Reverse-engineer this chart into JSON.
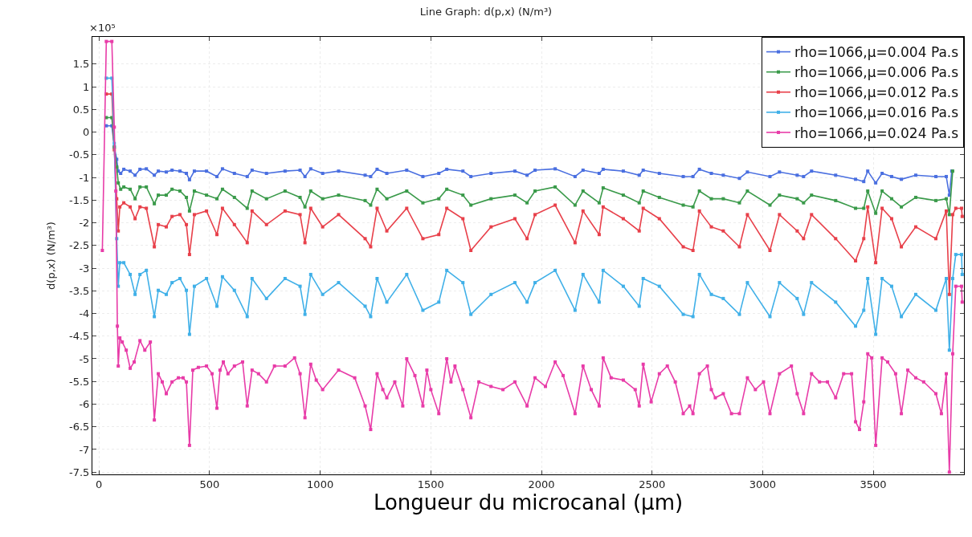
{
  "chart_data": {
    "type": "line",
    "title": "Line Graph: d(p,x) (N/m³)",
    "xlabel": "Longueur du microcanal (µm)",
    "ylabel": "d(p,x) (N/m³)",
    "xlim": [
      -30,
      3910
    ],
    "xticks": [
      0,
      500,
      1000,
      1500,
      2000,
      2500,
      3000,
      3500
    ],
    "ylim": [
      -7.55,
      2.1
    ],
    "annotations": [
      "×10⁵"
    ],
    "yticks": [
      1.5,
      1,
      0.5,
      0,
      -0.5,
      -1,
      -1.5,
      -2,
      -2.5,
      -3,
      -3.5,
      -4,
      -4.5,
      -5,
      -5.5,
      -6,
      -6.5,
      -7,
      -7.5
    ],
    "grid": true,
    "legend": "top right",
    "marker": "square",
    "line_style": "solid",
    "series": [
      {
        "name": "rho=1066,µ=0.004 Pa.s",
        "color": "#4a6fe0",
        "x": [
          33,
          58,
          69,
          80,
          87,
          98,
          112,
          141,
          163,
          185,
          214,
          250,
          268,
          304,
          330,
          366,
          395,
          409,
          431,
          486,
          533,
          558,
          612,
          670,
          692,
          757,
          841,
          909,
          931,
          957,
          1011,
          1083,
          1203,
          1228,
          1257,
          1301,
          1391,
          1464,
          1536,
          1572,
          1645,
          1681,
          1772,
          1880,
          1935,
          1971,
          2062,
          2152,
          2188,
          2261,
          2279,
          2370,
          2442,
          2460,
          2533,
          2641,
          2685,
          2714,
          2768,
          2822,
          2895,
          2931,
          3033,
          3076,
          3156,
          3185,
          3221,
          3330,
          3420,
          3457,
          3475,
          3511,
          3540,
          3583,
          3627,
          3692,
          3783,
          3830,
          3844,
          3855
        ],
        "values": [
          0.14,
          0.14,
          -0.33,
          -0.6,
          -0.86,
          -0.91,
          -0.82,
          -0.86,
          -0.95,
          -0.82,
          -0.81,
          -0.95,
          -0.86,
          -0.88,
          -0.84,
          -0.86,
          -0.91,
          -1.05,
          -0.86,
          -0.86,
          -0.98,
          -0.81,
          -0.91,
          -0.98,
          -0.84,
          -0.91,
          -0.86,
          -0.84,
          -0.98,
          -0.81,
          -0.91,
          -0.86,
          -0.95,
          -0.98,
          -0.82,
          -0.91,
          -0.84,
          -0.98,
          -0.91,
          -0.82,
          -0.86,
          -0.98,
          -0.91,
          -0.86,
          -0.95,
          -0.84,
          -0.81,
          -0.98,
          -0.84,
          -0.91,
          -0.82,
          -0.86,
          -0.95,
          -0.84,
          -0.91,
          -0.98,
          -0.98,
          -0.82,
          -0.91,
          -0.95,
          -1.02,
          -0.88,
          -0.98,
          -0.88,
          -0.95,
          -0.98,
          -0.86,
          -0.95,
          -1.04,
          -1.09,
          -0.86,
          -1.12,
          -0.91,
          -0.98,
          -1.04,
          -0.95,
          -0.98,
          -0.98,
          -1.39,
          -0.86
        ]
      },
      {
        "name": "rho=1066,µ=0.006 Pa.s",
        "color": "#3a9a4a",
        "x": [
          33,
          58,
          69,
          80,
          87,
          98,
          112,
          141,
          163,
          185,
          214,
          250,
          268,
          304,
          330,
          366,
          395,
          409,
          431,
          486,
          533,
          558,
          612,
          670,
          692,
          757,
          841,
          909,
          931,
          957,
          1011,
          1083,
          1203,
          1228,
          1257,
          1301,
          1391,
          1464,
          1536,
          1572,
          1645,
          1681,
          1772,
          1880,
          1935,
          1971,
          2062,
          2152,
          2188,
          2261,
          2279,
          2370,
          2442,
          2460,
          2533,
          2641,
          2685,
          2714,
          2768,
          2822,
          2895,
          2931,
          3033,
          3076,
          3156,
          3185,
          3221,
          3330,
          3420,
          3457,
          3475,
          3511,
          3540,
          3583,
          3627,
          3692,
          3783,
          3830,
          3844,
          3859
        ],
        "values": [
          0.32,
          0.32,
          -0.33,
          -0.77,
          -1.12,
          -1.26,
          -1.21,
          -1.26,
          -1.47,
          -1.21,
          -1.21,
          -1.58,
          -1.39,
          -1.39,
          -1.26,
          -1.3,
          -1.44,
          -1.74,
          -1.3,
          -1.39,
          -1.47,
          -1.26,
          -1.44,
          -1.68,
          -1.3,
          -1.47,
          -1.3,
          -1.44,
          -1.65,
          -1.3,
          -1.47,
          -1.39,
          -1.51,
          -1.61,
          -1.26,
          -1.47,
          -1.3,
          -1.56,
          -1.47,
          -1.26,
          -1.39,
          -1.61,
          -1.47,
          -1.39,
          -1.56,
          -1.3,
          -1.21,
          -1.61,
          -1.3,
          -1.56,
          -1.23,
          -1.39,
          -1.56,
          -1.3,
          -1.44,
          -1.61,
          -1.65,
          -1.3,
          -1.47,
          -1.47,
          -1.56,
          -1.3,
          -1.61,
          -1.39,
          -1.47,
          -1.56,
          -1.39,
          -1.51,
          -1.68,
          -1.68,
          -1.3,
          -1.79,
          -1.3,
          -1.47,
          -1.65,
          -1.44,
          -1.51,
          -1.47,
          -1.82,
          -0.86
        ]
      },
      {
        "name": "rho=1066,µ=0.012 Pa.s",
        "color": "#e8404a",
        "x": [
          33,
          58,
          69,
          80,
          87,
          94,
          112,
          141,
          163,
          185,
          214,
          250,
          268,
          304,
          330,
          366,
          395,
          409,
          431,
          486,
          533,
          558,
          612,
          670,
          692,
          757,
          841,
          909,
          931,
          957,
          1011,
          1083,
          1203,
          1228,
          1257,
          1301,
          1391,
          1464,
          1536,
          1572,
          1645,
          1681,
          1772,
          1880,
          1935,
          1971,
          2062,
          2152,
          2188,
          2261,
          2279,
          2370,
          2442,
          2460,
          2533,
          2641,
          2685,
          2714,
          2768,
          2822,
          2895,
          2931,
          3033,
          3076,
          3156,
          3185,
          3221,
          3330,
          3420,
          3457,
          3475,
          3511,
          3540,
          3583,
          3627,
          3692,
          3783,
          3830,
          3844,
          3859,
          3873,
          3899,
          3902
        ],
        "values": [
          0.84,
          0.84,
          -0.39,
          -1.47,
          -2.18,
          -1.65,
          -1.56,
          -1.65,
          -1.91,
          -1.65,
          -1.68,
          -2.53,
          -2.04,
          -2.09,
          -1.86,
          -1.82,
          -2.04,
          -2.7,
          -1.82,
          -1.74,
          -2.26,
          -1.68,
          -2.04,
          -2.44,
          -1.74,
          -2.04,
          -1.74,
          -1.82,
          -2.44,
          -1.68,
          -2.09,
          -1.82,
          -2.35,
          -2.53,
          -1.68,
          -2.18,
          -1.68,
          -2.35,
          -2.26,
          -1.68,
          -1.91,
          -2.61,
          -2.09,
          -1.91,
          -2.35,
          -1.82,
          -1.61,
          -2.44,
          -1.74,
          -2.26,
          -1.65,
          -1.91,
          -2.18,
          -1.68,
          -1.91,
          -2.53,
          -2.61,
          -1.74,
          -2.09,
          -2.18,
          -2.53,
          -1.82,
          -2.61,
          -1.82,
          -2.18,
          -2.35,
          -1.82,
          -2.35,
          -2.84,
          -2.35,
          -1.65,
          -2.88,
          -1.68,
          -1.91,
          -2.53,
          -2.09,
          -2.35,
          -1.74,
          -3.58,
          -1.82,
          -1.68,
          -1.68,
          -1.86
        ]
      },
      {
        "name": "rho=1066,µ=0.016 Pa.s",
        "color": "#40b0e8",
        "x": [
          33,
          58,
          69,
          80,
          87,
          94,
          112,
          141,
          163,
          185,
          214,
          250,
          268,
          304,
          330,
          366,
          395,
          409,
          431,
          486,
          533,
          558,
          612,
          670,
          692,
          757,
          841,
          909,
          931,
          957,
          1011,
          1083,
          1203,
          1228,
          1257,
          1301,
          1391,
          1464,
          1536,
          1572,
          1645,
          1681,
          1772,
          1880,
          1935,
          1971,
          2062,
          2152,
          2188,
          2261,
          2279,
          2370,
          2442,
          2460,
          2533,
          2641,
          2685,
          2714,
          2768,
          2822,
          2895,
          2931,
          3033,
          3076,
          3156,
          3185,
          3221,
          3330,
          3420,
          3457,
          3475,
          3511,
          3540,
          3583,
          3627,
          3692,
          3783,
          3830,
          3844,
          3859,
          3873,
          3899,
          3902
        ],
        "values": [
          1.19,
          1.19,
          -0.25,
          -2.35,
          -3.4,
          -2.88,
          -2.88,
          -3.14,
          -3.58,
          -3.14,
          -3.05,
          -4.07,
          -3.49,
          -3.58,
          -3.32,
          -3.23,
          -3.49,
          -4.46,
          -3.4,
          -3.23,
          -3.84,
          -3.19,
          -3.49,
          -4.07,
          -3.23,
          -3.67,
          -3.23,
          -3.4,
          -4.02,
          -3.14,
          -3.58,
          -3.32,
          -3.84,
          -4.07,
          -3.23,
          -3.75,
          -3.14,
          -3.93,
          -3.75,
          -3.05,
          -3.32,
          -4.02,
          -3.58,
          -3.32,
          -3.75,
          -3.32,
          -3.05,
          -3.93,
          -3.14,
          -3.75,
          -3.05,
          -3.4,
          -3.84,
          -3.23,
          -3.4,
          -4.02,
          -4.07,
          -3.14,
          -3.58,
          -3.67,
          -4.02,
          -3.32,
          -4.07,
          -3.32,
          -3.67,
          -4.02,
          -3.32,
          -3.75,
          -4.28,
          -3.93,
          -3.23,
          -4.46,
          -3.23,
          -3.4,
          -4.07,
          -3.58,
          -3.93,
          -3.23,
          -4.81,
          -3.23,
          -2.7,
          -2.7,
          -3.14
        ]
      },
      {
        "name": "rho=1066,µ=0.024 Pa.s",
        "color": "#e83ca8",
        "x": [
          15,
          33,
          58,
          69,
          76,
          83,
          87,
          94,
          105,
          123,
          141,
          159,
          185,
          207,
          232,
          250,
          268,
          286,
          304,
          330,
          359,
          380,
          395,
          409,
          424,
          449,
          486,
          511,
          533,
          547,
          562,
          583,
          612,
          649,
          670,
          692,
          721,
          757,
          793,
          841,
          884,
          909,
          931,
          957,
          982,
          1011,
          1083,
          1156,
          1203,
          1228,
          1257,
          1283,
          1301,
          1337,
          1373,
          1391,
          1428,
          1464,
          1482,
          1500,
          1536,
          1572,
          1591,
          1609,
          1645,
          1681,
          1717,
          1772,
          1826,
          1880,
          1935,
          1971,
          2018,
          2062,
          2098,
          2152,
          2188,
          2225,
          2261,
          2279,
          2315,
          2370,
          2424,
          2442,
          2460,
          2496,
          2533,
          2569,
          2605,
          2641,
          2670,
          2685,
          2714,
          2750,
          2768,
          2786,
          2822,
          2859,
          2895,
          2931,
          2967,
          3004,
          3033,
          3076,
          3130,
          3156,
          3185,
          3221,
          3257,
          3293,
          3330,
          3366,
          3402,
          3420,
          3438,
          3457,
          3475,
          3493,
          3511,
          3540,
          3565,
          3601,
          3627,
          3656,
          3692,
          3728,
          3783,
          3808,
          3830,
          3844,
          3859,
          3873,
          3899,
          3902
        ],
        "values": [
          -2.61,
          2.0,
          2.0,
          0.11,
          -1.3,
          -4.28,
          -5.16,
          -4.54,
          -4.63,
          -4.81,
          -5.21,
          -5.07,
          -4.6,
          -4.81,
          -4.63,
          -6.35,
          -5.33,
          -5.51,
          -5.77,
          -5.51,
          -5.42,
          -5.42,
          -5.51,
          -6.91,
          -5.25,
          -5.19,
          -5.16,
          -5.33,
          -6.09,
          -5.25,
          -5.07,
          -5.33,
          -5.16,
          -5.07,
          -6.04,
          -5.25,
          -5.33,
          -5.51,
          -5.16,
          -5.16,
          -4.98,
          -5.33,
          -6.3,
          -5.12,
          -5.47,
          -5.68,
          -5.25,
          -5.42,
          -6.04,
          -6.56,
          -5.33,
          -5.68,
          -5.86,
          -5.51,
          -6.04,
          -5.0,
          -5.37,
          -6.04,
          -5.25,
          -5.68,
          -6.21,
          -5.0,
          -5.51,
          -5.16,
          -5.68,
          -6.3,
          -5.51,
          -5.61,
          -5.68,
          -5.51,
          -6.04,
          -5.42,
          -5.61,
          -5.07,
          -5.37,
          -6.21,
          -5.16,
          -5.68,
          -6.04,
          -4.98,
          -5.42,
          -5.47,
          -5.68,
          -6.04,
          -5.12,
          -5.95,
          -5.33,
          -5.16,
          -5.51,
          -6.21,
          -6.04,
          -6.21,
          -5.33,
          -5.16,
          -5.68,
          -5.86,
          -5.77,
          -6.21,
          -6.21,
          -5.42,
          -5.68,
          -5.51,
          -6.21,
          -5.33,
          -5.16,
          -5.77,
          -6.21,
          -5.33,
          -5.51,
          -5.51,
          -5.86,
          -5.33,
          -5.33,
          -6.39,
          -6.56,
          -5.95,
          -4.89,
          -4.98,
          -6.91,
          -4.98,
          -5.07,
          -5.33,
          -6.21,
          -5.25,
          -5.42,
          -5.51,
          -5.77,
          -6.21,
          -5.33,
          -7.5,
          -4.89,
          -3.4,
          -3.4,
          -3.75
        ]
      }
    ]
  }
}
